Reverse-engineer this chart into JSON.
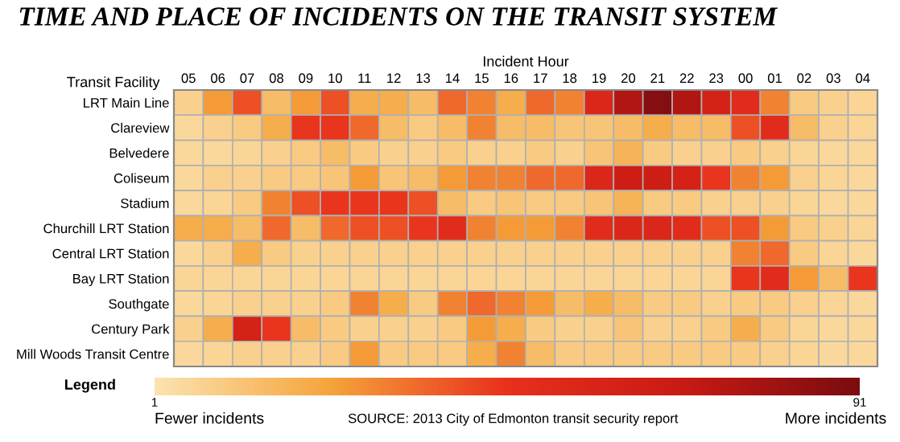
{
  "chart_data": {
    "type": "heatmap",
    "title": "TIME AND PLACE OF INCIDENTS ON THE TRANSIT SYSTEM",
    "xlabel": "Incident Hour",
    "ylabel": "Transit Facility",
    "clabel": "Legend",
    "categories": [
      "05",
      "06",
      "07",
      "08",
      "09",
      "10",
      "11",
      "12",
      "13",
      "14",
      "15",
      "16",
      "17",
      "18",
      "19",
      "20",
      "21",
      "22",
      "23",
      "00",
      "01",
      "02",
      "03",
      "04"
    ],
    "y_categories": [
      "LRT Main Line",
      "Clareview",
      "Belvedere",
      "Coliseum",
      "Stadium",
      "Churchill LRT Station",
      "Central LRT Station",
      "Bay LRT Station",
      "Southgate",
      "Century Park",
      "Mill Woods Transit Centre"
    ],
    "cells": [
      [
        8,
        25,
        40,
        15,
        25,
        40,
        20,
        20,
        15,
        35,
        30,
        20,
        35,
        30,
        55,
        75,
        88,
        75,
        60,
        50,
        30,
        10,
        8,
        6
      ],
      [
        5,
        8,
        10,
        20,
        45,
        45,
        35,
        15,
        10,
        15,
        30,
        15,
        15,
        12,
        12,
        15,
        20,
        15,
        15,
        40,
        50,
        15,
        8,
        6
      ],
      [
        5,
        5,
        6,
        8,
        10,
        15,
        10,
        8,
        8,
        10,
        8,
        8,
        10,
        8,
        12,
        18,
        10,
        8,
        8,
        10,
        8,
        6,
        5,
        5
      ],
      [
        5,
        8,
        8,
        10,
        10,
        12,
        25,
        12,
        15,
        25,
        30,
        30,
        35,
        35,
        55,
        65,
        65,
        60,
        45,
        30,
        25,
        8,
        6,
        5
      ],
      [
        5,
        6,
        10,
        30,
        40,
        45,
        45,
        45,
        40,
        15,
        10,
        12,
        10,
        10,
        12,
        18,
        10,
        10,
        8,
        8,
        8,
        6,
        5,
        5
      ],
      [
        20,
        20,
        15,
        35,
        15,
        35,
        40,
        40,
        45,
        50,
        30,
        25,
        25,
        30,
        50,
        55,
        55,
        50,
        40,
        40,
        25,
        10,
        8,
        6
      ],
      [
        5,
        8,
        20,
        10,
        8,
        8,
        8,
        8,
        8,
        8,
        8,
        8,
        8,
        8,
        8,
        8,
        8,
        8,
        8,
        30,
        35,
        10,
        6,
        5
      ],
      [
        6,
        6,
        6,
        6,
        6,
        6,
        6,
        6,
        6,
        6,
        6,
        6,
        6,
        6,
        6,
        6,
        6,
        6,
        6,
        45,
        50,
        25,
        15,
        45
      ],
      [
        5,
        6,
        8,
        8,
        8,
        10,
        30,
        20,
        10,
        30,
        35,
        30,
        25,
        15,
        20,
        15,
        10,
        10,
        8,
        10,
        10,
        8,
        6,
        5
      ],
      [
        8,
        20,
        60,
        45,
        15,
        10,
        8,
        8,
        8,
        10,
        25,
        20,
        10,
        8,
        8,
        12,
        8,
        8,
        10,
        20,
        10,
        6,
        5,
        5
      ],
      [
        5,
        6,
        8,
        8,
        8,
        10,
        25,
        10,
        10,
        10,
        20,
        30,
        15,
        10,
        10,
        10,
        10,
        10,
        10,
        10,
        8,
        6,
        5,
        5
      ]
    ],
    "clim": [
      1,
      91
    ],
    "cticks": [
      1,
      91
    ],
    "annotations": [
      "Fewer incidents",
      "SOURCE: 2013 City of Edmonton transit security report",
      "More incidents"
    ]
  }
}
